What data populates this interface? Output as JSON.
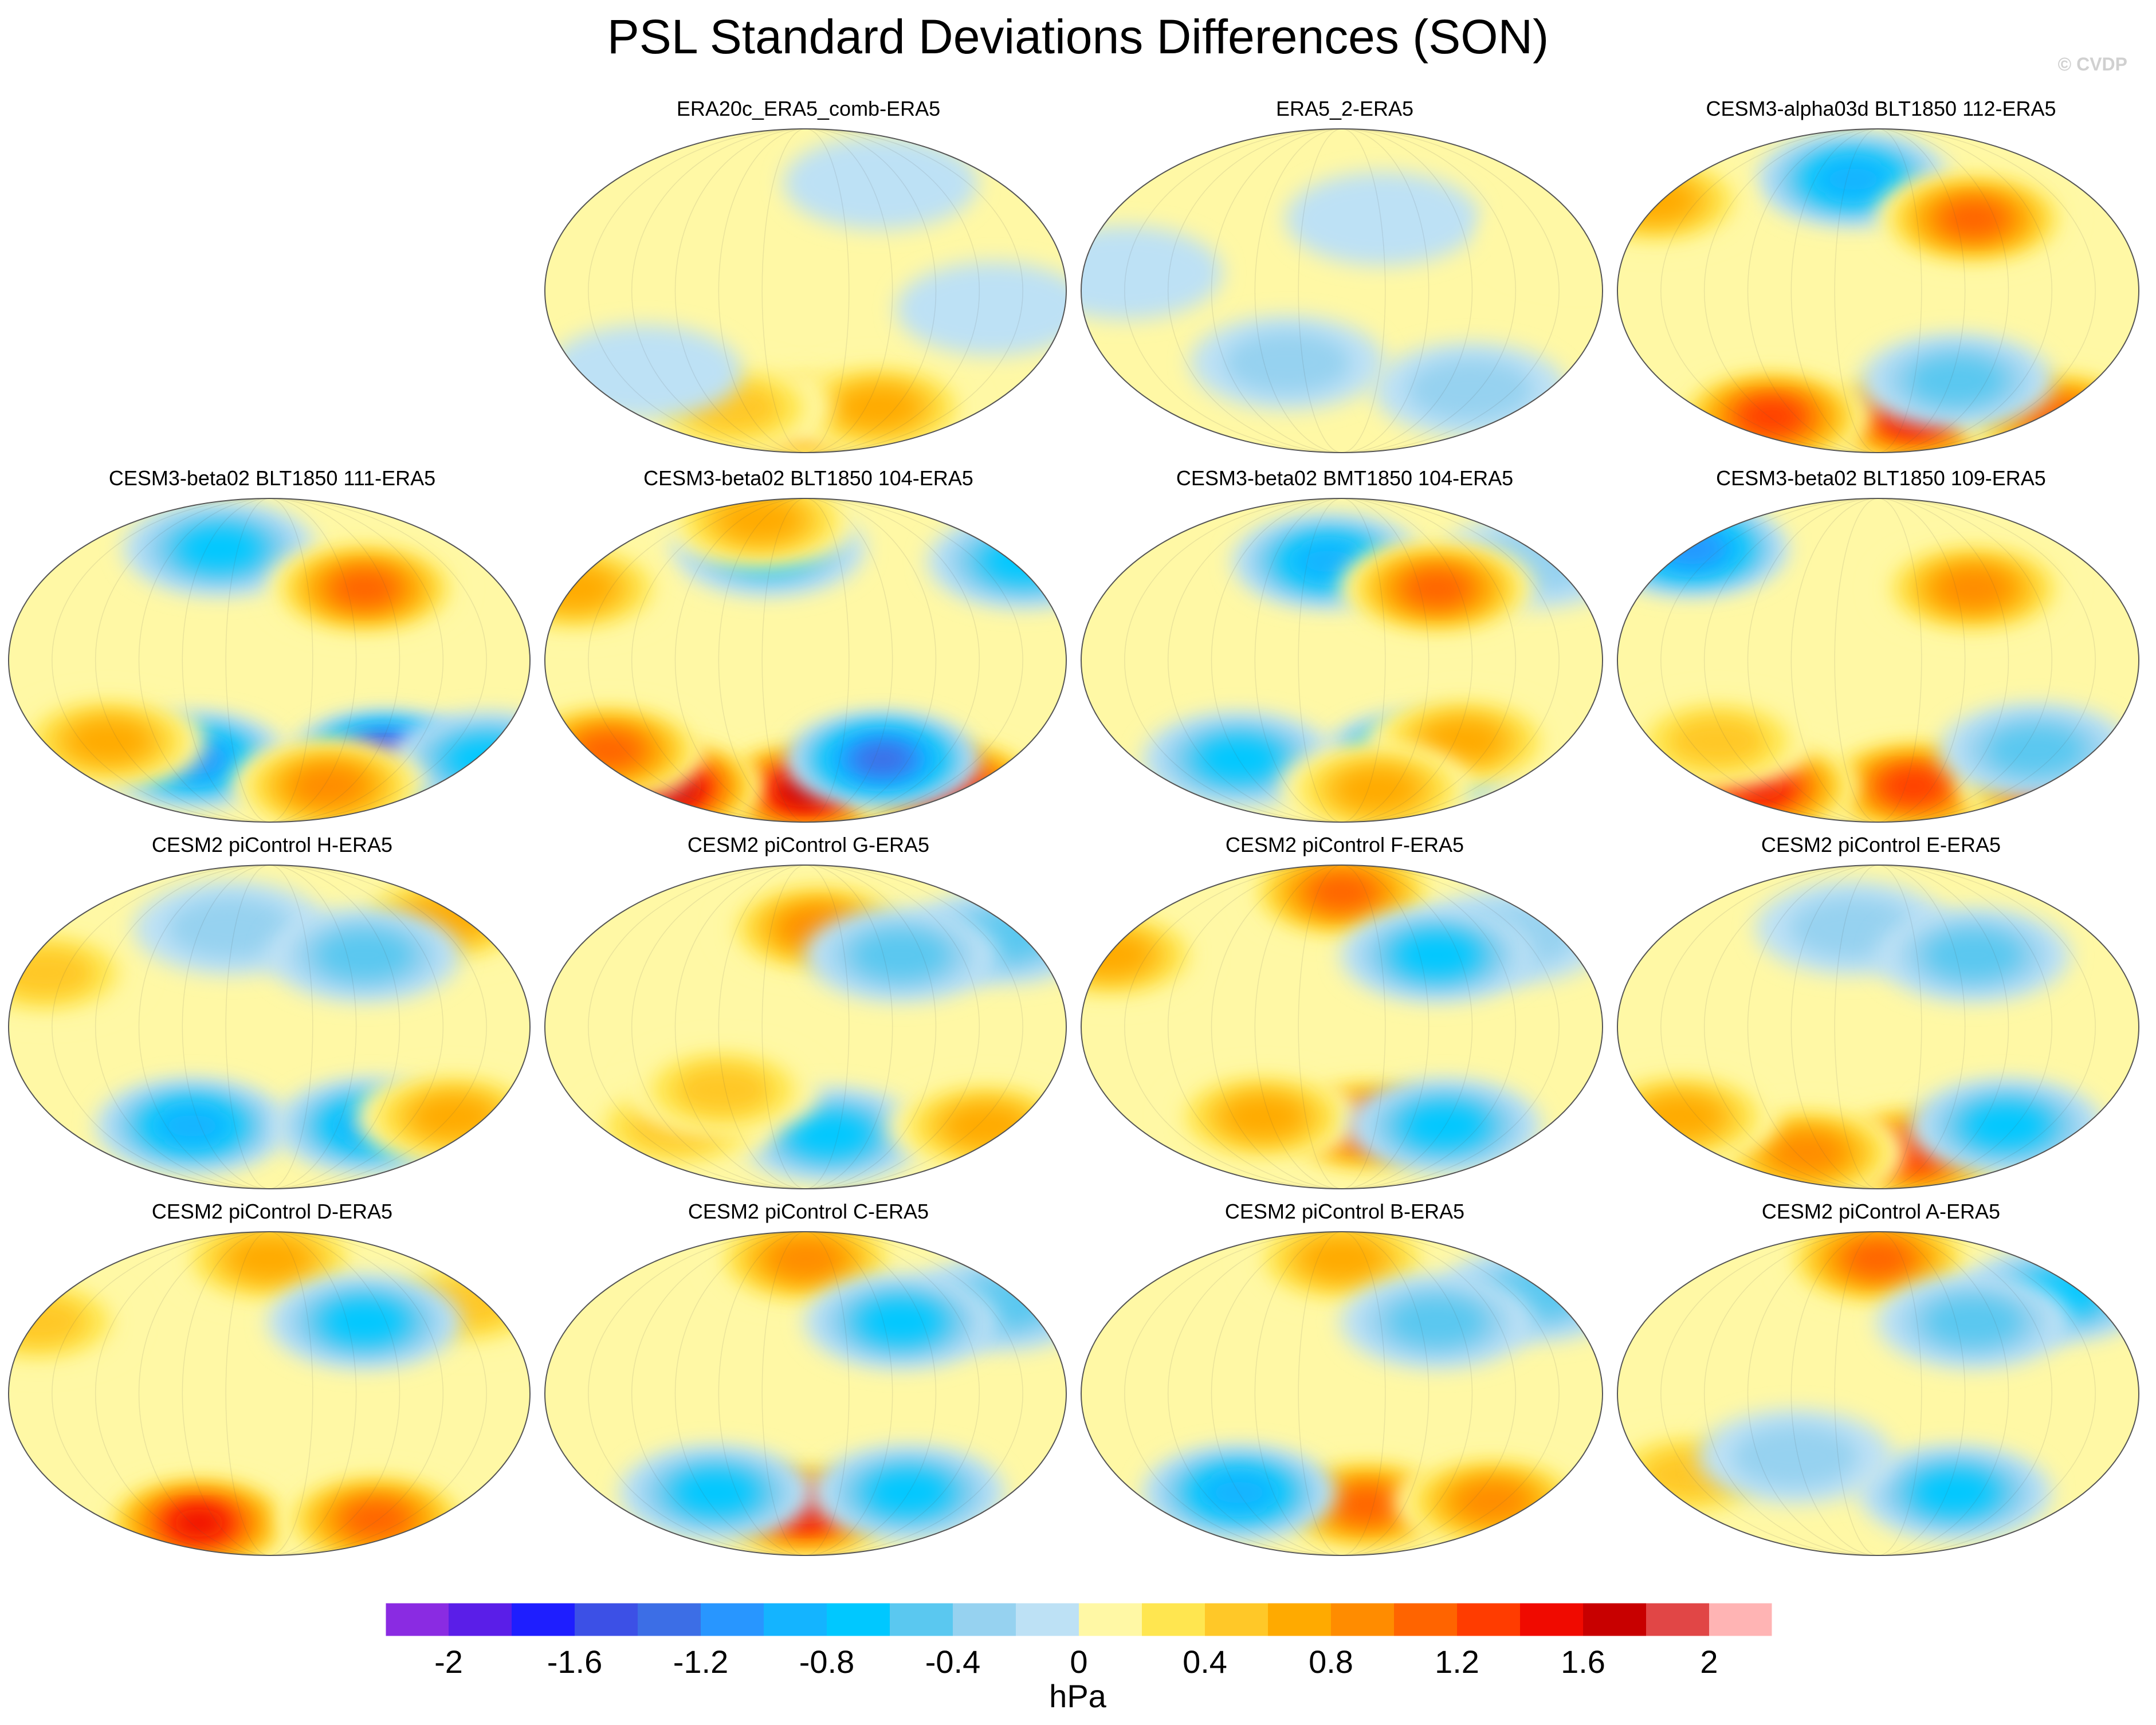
{
  "title": "PSL Standard Deviations Differences (SON)",
  "watermark": "© CVDP",
  "chart_data": {
    "type": "heatmap",
    "projection": "robinson-global-maps",
    "field": "PSL standard deviation difference",
    "season": "SON",
    "units": "hPa",
    "panels": [
      {
        "title": "ERA20c_ERA5_comb-ERA5",
        "features": [
          {
            "lon": 0,
            "lat": -70,
            "value": 1.0
          },
          {
            "lon": 60,
            "lat": -65,
            "value": 0.8
          },
          {
            "lon": -60,
            "lat": -65,
            "value": 0.6
          },
          {
            "lon": 130,
            "lat": -10,
            "value": -0.2
          },
          {
            "lon": -120,
            "lat": -45,
            "value": -0.2
          },
          {
            "lon": 60,
            "lat": 60,
            "value": -0.2
          }
        ]
      },
      {
        "title": "ERA5_2-ERA5",
        "features": [
          {
            "lon": 100,
            "lat": -55,
            "value": -0.4
          },
          {
            "lon": -40,
            "lat": -40,
            "value": -0.4
          },
          {
            "lon": -150,
            "lat": 10,
            "value": -0.2
          },
          {
            "lon": 30,
            "lat": 40,
            "value": -0.2
          },
          {
            "lon": 170,
            "lat": 30,
            "value": 0.2
          }
        ]
      },
      {
        "title": "CESM3-alpha03d BLT1850 112-ERA5",
        "features": [
          {
            "lon": 30,
            "lat": -70,
            "value": 1.6
          },
          {
            "lon": -90,
            "lat": -70,
            "value": 1.4
          },
          {
            "lon": 150,
            "lat": -70,
            "value": 1.2
          },
          {
            "lon": -20,
            "lat": 62,
            "value": -1.0
          },
          {
            "lon": 60,
            "lat": -50,
            "value": -0.6
          },
          {
            "lon": -170,
            "lat": 50,
            "value": 0.8
          },
          {
            "lon": 70,
            "lat": 40,
            "value": 1.2
          }
        ]
      },
      {
        "title": "CESM3-beta02 BLT1850 111-ERA5",
        "features": [
          {
            "lon": 90,
            "lat": -55,
            "value": -1.8
          },
          {
            "lon": -60,
            "lat": -55,
            "value": -1.2
          },
          {
            "lon": 170,
            "lat": -55,
            "value": -0.8
          },
          {
            "lon": -120,
            "lat": -45,
            "value": 0.8
          },
          {
            "lon": 50,
            "lat": -70,
            "value": 1.0
          },
          {
            "lon": -40,
            "lat": 62,
            "value": -0.8
          },
          {
            "lon": 70,
            "lat": 40,
            "value": 1.2
          }
        ]
      },
      {
        "title": "CESM3-beta02 BLT1850 104-ERA5",
        "features": [
          {
            "lon": 0,
            "lat": -72,
            "value": 1.8
          },
          {
            "lon": -120,
            "lat": -70,
            "value": 2.0
          },
          {
            "lon": 120,
            "lat": -70,
            "value": 1.6
          },
          {
            "lon": 60,
            "lat": -55,
            "value": -1.4
          },
          {
            "lon": -150,
            "lat": -50,
            "value": 1.2
          },
          {
            "lon": -30,
            "lat": 62,
            "value": -0.8
          },
          {
            "lon": 170,
            "lat": 55,
            "value": -0.8
          },
          {
            "lon": -170,
            "lat": 40,
            "value": 0.8
          },
          {
            "lon": -40,
            "lat": 78,
            "value": 0.8
          }
        ]
      },
      {
        "title": "CESM3-beta02 BMT1850 104-ERA5",
        "features": [
          {
            "lon": 60,
            "lat": -55,
            "value": -1.6
          },
          {
            "lon": -80,
            "lat": -55,
            "value": -0.8
          },
          {
            "lon": 90,
            "lat": -45,
            "value": 0.8
          },
          {
            "lon": -10,
            "lat": 55,
            "value": -1.0
          },
          {
            "lon": 150,
            "lat": 55,
            "value": -0.4
          },
          {
            "lon": 30,
            "lat": -72,
            "value": 0.8
          },
          {
            "lon": 70,
            "lat": 40,
            "value": 1.2
          }
        ]
      },
      {
        "title": "CESM3-beta02 BLT1850 109-ERA5",
        "features": [
          {
            "lon": 30,
            "lat": -70,
            "value": 1.4
          },
          {
            "lon": -100,
            "lat": -70,
            "value": 1.6
          },
          {
            "lon": 150,
            "lat": -70,
            "value": 1.4
          },
          {
            "lon": -150,
            "lat": 62,
            "value": -1.2
          },
          {
            "lon": 120,
            "lat": -50,
            "value": -0.6
          },
          {
            "lon": -120,
            "lat": -45,
            "value": 0.6
          },
          {
            "lon": 70,
            "lat": 40,
            "value": 1.0
          }
        ]
      },
      {
        "title": "CESM2 piControl H-ERA5",
        "features": [
          {
            "lon": -60,
            "lat": -55,
            "value": -1.0
          },
          {
            "lon": 80,
            "lat": -55,
            "value": -1.0
          },
          {
            "lon": 140,
            "lat": -50,
            "value": 0.8
          },
          {
            "lon": -160,
            "lat": 30,
            "value": 0.6
          },
          {
            "lon": 140,
            "lat": 60,
            "value": 0.8
          },
          {
            "lon": -30,
            "lat": 55,
            "value": -0.4
          },
          {
            "lon": 70,
            "lat": 40,
            "value": -0.6
          }
        ]
      },
      {
        "title": "CESM2 piControl G-ERA5",
        "features": [
          {
            "lon": 20,
            "lat": -60,
            "value": -0.8
          },
          {
            "lon": -100,
            "lat": -55,
            "value": 0.6
          },
          {
            "lon": 140,
            "lat": -55,
            "value": 0.8
          },
          {
            "lon": 10,
            "lat": 55,
            "value": 1.0
          },
          {
            "lon": 150,
            "lat": 50,
            "value": -0.6
          },
          {
            "lon": -60,
            "lat": -35,
            "value": 0.6
          },
          {
            "lon": 70,
            "lat": 40,
            "value": -0.6
          }
        ]
      },
      {
        "title": "CESM2 piControl F-ERA5",
        "features": [
          {
            "lon": 0,
            "lat": 75,
            "value": 1.2
          },
          {
            "lon": 20,
            "lat": -55,
            "value": 1.4
          },
          {
            "lon": -60,
            "lat": -50,
            "value": 0.8
          },
          {
            "lon": 80,
            "lat": -55,
            "value": -0.8
          },
          {
            "lon": -170,
            "lat": 40,
            "value": 0.8
          },
          {
            "lon": 130,
            "lat": 50,
            "value": -0.4
          },
          {
            "lon": 70,
            "lat": 40,
            "value": -0.8
          }
        ]
      },
      {
        "title": "CESM2 piControl E-ERA5",
        "features": [
          {
            "lon": 30,
            "lat": -70,
            "value": 1.4
          },
          {
            "lon": -60,
            "lat": -70,
            "value": 1.0
          },
          {
            "lon": 100,
            "lat": -55,
            "value": -0.8
          },
          {
            "lon": -150,
            "lat": -50,
            "value": 0.8
          },
          {
            "lon": -20,
            "lat": 55,
            "value": -0.4
          },
          {
            "lon": 70,
            "lat": 40,
            "value": -0.6
          }
        ]
      },
      {
        "title": "CESM2 piControl D-ERA5",
        "features": [
          {
            "lon": -60,
            "lat": -72,
            "value": 1.6
          },
          {
            "lon": 0,
            "lat": 75,
            "value": 0.8
          },
          {
            "lon": 90,
            "lat": -70,
            "value": 1.2
          },
          {
            "lon": -170,
            "lat": 40,
            "value": 0.6
          },
          {
            "lon": 150,
            "lat": 50,
            "value": 0.6
          },
          {
            "lon": 70,
            "lat": 40,
            "value": -0.8
          }
        ]
      },
      {
        "title": "CESM2 piControl C-ERA5",
        "features": [
          {
            "lon": 0,
            "lat": -65,
            "value": 1.6
          },
          {
            "lon": -70,
            "lat": -55,
            "value": -0.8
          },
          {
            "lon": 80,
            "lat": -55,
            "value": -0.8
          },
          {
            "lon": 0,
            "lat": 75,
            "value": 1.0
          },
          {
            "lon": 150,
            "lat": 50,
            "value": -0.6
          },
          {
            "lon": 70,
            "lat": 40,
            "value": -0.8
          }
        ]
      },
      {
        "title": "CESM2 piControl B-ERA5",
        "features": [
          {
            "lon": 20,
            "lat": -62,
            "value": 1.2
          },
          {
            "lon": -80,
            "lat": -55,
            "value": -1.0
          },
          {
            "lon": 120,
            "lat": -60,
            "value": 1.0
          },
          {
            "lon": 150,
            "lat": 55,
            "value": -0.6
          },
          {
            "lon": 0,
            "lat": 75,
            "value": 0.8
          },
          {
            "lon": 70,
            "lat": 40,
            "value": -0.6
          }
        ]
      },
      {
        "title": "CESM2 piControl A-ERA5",
        "features": [
          {
            "lon": 0,
            "lat": 75,
            "value": 1.2
          },
          {
            "lon": 60,
            "lat": -55,
            "value": -0.8
          },
          {
            "lon": 140,
            "lat": 55,
            "value": -0.8
          },
          {
            "lon": -140,
            "lat": -45,
            "value": 0.6
          },
          {
            "lon": -60,
            "lat": -35,
            "value": -0.4
          },
          {
            "lon": 70,
            "lat": 40,
            "value": -0.6
          }
        ]
      }
    ],
    "levels": [
      -2.2,
      -2.0,
      -1.8,
      -1.6,
      -1.4,
      -1.2,
      -1.0,
      -0.8,
      -0.6,
      -0.4,
      -0.2,
      0,
      0.2,
      0.4,
      0.6,
      0.8,
      1.0,
      1.2,
      1.4,
      1.6,
      1.8,
      2.0,
      2.2
    ],
    "colors": [
      "#8a2be2",
      "#5a1ee8",
      "#1e1eff",
      "#3c50e6",
      "#3c6ee6",
      "#2896ff",
      "#14b4ff",
      "#00c8ff",
      "#5ac8f0",
      "#96d2f0",
      "#bde1f5",
      "#fff8a5",
      "#ffe650",
      "#ffc828",
      "#ffaa00",
      "#ff8c00",
      "#ff6400",
      "#ff3c00",
      "#f00a00",
      "#c80000",
      "#e14646",
      "#ffb4b4"
    ],
    "colorbar_ticks": [
      "-2",
      "-1.6",
      "-1.2",
      "-0.8",
      "-0.4",
      "0",
      "0.4",
      "0.8",
      "1.2",
      "1.6",
      "2"
    ],
    "colorbar_label": "hPa"
  }
}
